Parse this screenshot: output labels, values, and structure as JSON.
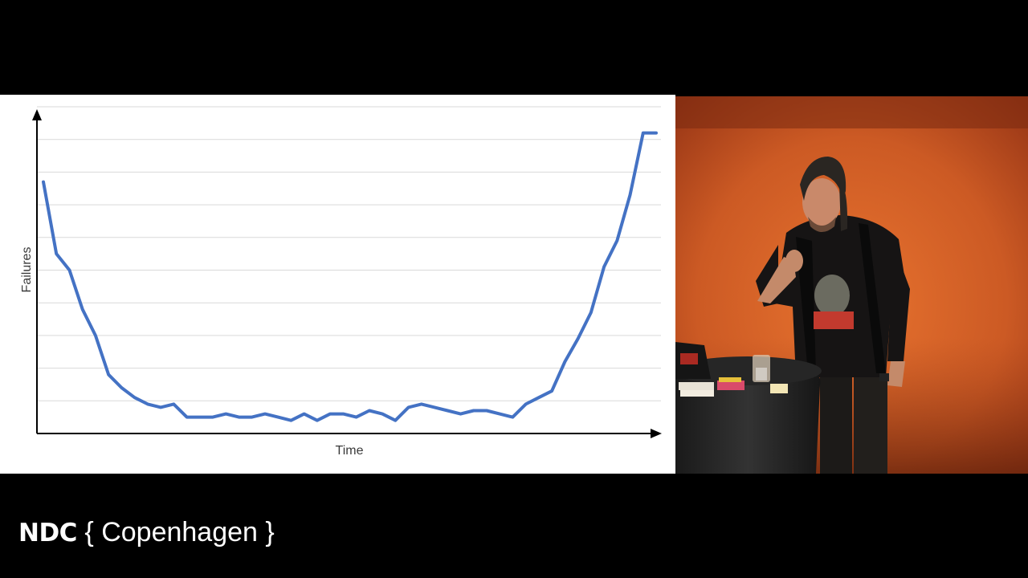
{
  "chart_data": {
    "type": "line",
    "title": "",
    "xlabel": "Time",
    "ylabel": "Failures",
    "x": [
      0,
      1,
      2,
      3,
      4,
      5,
      6,
      7,
      8,
      9,
      10,
      11,
      12,
      13,
      14,
      15,
      16,
      17,
      18,
      19,
      20,
      21,
      22,
      23,
      24,
      25,
      26,
      27,
      28,
      29,
      30,
      31,
      32,
      33,
      34,
      35,
      36,
      37,
      38,
      39,
      40,
      41,
      42,
      43,
      44,
      45,
      46,
      47
    ],
    "ylim": [
      0,
      10
    ],
    "series": [
      {
        "values": [
          7.7,
          5.5,
          5.0,
          3.8,
          3.0,
          1.8,
          1.4,
          1.1,
          0.9,
          0.8,
          0.9,
          0.5,
          0.5,
          0.5,
          0.6,
          0.5,
          0.5,
          0.6,
          0.5,
          0.4,
          0.6,
          0.4,
          0.6,
          0.6,
          0.5,
          0.7,
          0.6,
          0.4,
          0.8,
          0.9,
          0.8,
          0.7,
          0.6,
          0.7,
          0.7,
          0.6,
          0.5,
          0.9,
          1.1,
          1.3,
          2.2,
          2.9,
          3.7,
          5.1,
          5.9,
          7.3,
          9.2,
          9.2
        ],
        "color": "#4472c4"
      }
    ],
    "grid": true,
    "gridlines": 10,
    "legend": "none",
    "axis_color": "#000000",
    "grid_color": "#d9d9d9"
  },
  "brand": {
    "name": "NDC",
    "city": "{ Copenhagen }"
  }
}
